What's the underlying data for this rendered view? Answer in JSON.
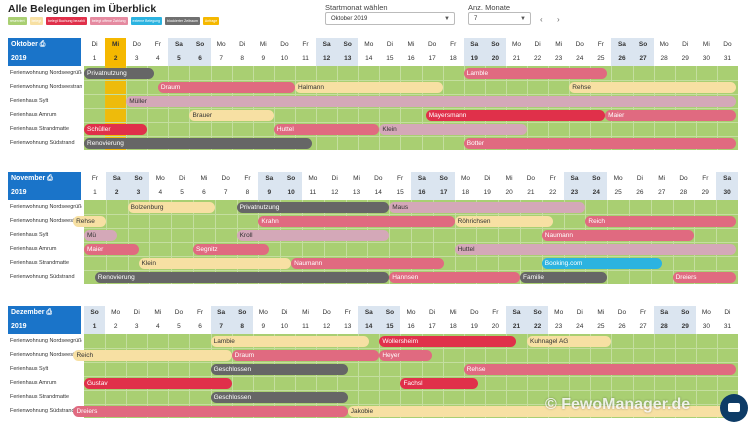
{
  "title": "Alle Belegungen im Überblick",
  "legend": [
    {
      "label": "reserviert",
      "color": "#a9cf72"
    },
    {
      "label": "belegt",
      "color": "#f7e0a3"
    },
    {
      "label": "belegt Buchung bezahlt",
      "color": "#e0304a"
    },
    {
      "label": "belegt offene Zahlung",
      "color": "#e58aa0"
    },
    {
      "label": "externe Belegung",
      "color": "#2bb3e0"
    },
    {
      "label": "blockierter Zeitraum",
      "color": "#707070"
    },
    {
      "label": "Anfrage",
      "color": "#f5b800"
    }
  ],
  "controls": {
    "start_label": "Startmonat wählen",
    "start_value": "Oktober 2019",
    "count_label": "Anz. Monate",
    "count_value": "7",
    "prev": "‹",
    "next": "›"
  },
  "colors": {
    "accent": "#1a74c9",
    "grid": "#a9cf72",
    "weekend": "#dbe5f0",
    "today": "#f5b800"
  },
  "months": [
    {
      "name": "Oktober",
      "year": "2019",
      "icon": "print-icon",
      "dows": [
        "Di",
        "Mi",
        "Do",
        "Fr",
        "Sa",
        "So",
        "Mo",
        "Di",
        "Mi",
        "Do",
        "Fr",
        "Sa",
        "So",
        "Mo",
        "Di",
        "Mi",
        "Do",
        "Fr",
        "Sa",
        "So",
        "Mo",
        "Di",
        "Mi",
        "Do",
        "Fr",
        "Sa",
        "So",
        "Mo",
        "Di",
        "Mi",
        "Do"
      ],
      "today": 2,
      "units": [
        "Ferienwohnung Nordseegrüße",
        "Ferienwohnung Nordseestrand",
        "Ferienhaus Sylt",
        "Ferienhaus Amrum",
        "Ferienhaus Strandmatte",
        "Ferienwohnung Südstrand"
      ],
      "bookings": [
        {
          "row": 0,
          "s": 1,
          "e": 4.3,
          "label": "Privatnutzung",
          "color": "#666666",
          "dark": false
        },
        {
          "row": 0,
          "s": 19,
          "e": 25.8,
          "label": "Lamble",
          "color": "#e06a80",
          "dark": false
        },
        {
          "row": 1,
          "s": 4.5,
          "e": 11,
          "label": "Draum",
          "color": "#e06a80",
          "dark": false
        },
        {
          "row": 1,
          "s": 11,
          "e": 18,
          "label": "Halmann",
          "color": "#f7e0a3",
          "dark": true
        },
        {
          "row": 1,
          "s": 24,
          "e": 31.9,
          "label": "Rehse",
          "color": "#f7e0a3",
          "dark": true
        },
        {
          "row": 2,
          "s": 3,
          "e": 31.9,
          "label": "Müller",
          "color": "#d4a8b8",
          "dark": true
        },
        {
          "row": 3,
          "s": 6,
          "e": 10,
          "label": "Brauer",
          "color": "#f7e0a3",
          "dark": true
        },
        {
          "row": 3,
          "s": 17.2,
          "e": 25.7,
          "label": "Mayersmann",
          "color": "#e0304a",
          "dark": false
        },
        {
          "row": 3,
          "s": 25.7,
          "e": 31.9,
          "label": "Maier",
          "color": "#e06a80",
          "dark": false
        },
        {
          "row": 4,
          "s": 1,
          "e": 4,
          "label": "Schüller",
          "color": "#e0304a",
          "dark": false
        },
        {
          "row": 4,
          "s": 10,
          "e": 15,
          "label": "Huttel",
          "color": "#e06a80",
          "dark": false
        },
        {
          "row": 4,
          "s": 15,
          "e": 22,
          "label": "Klein",
          "color": "#d4a8b8",
          "dark": true
        },
        {
          "row": 5,
          "s": 1,
          "e": 11.8,
          "label": "Renovierung",
          "color": "#666666",
          "dark": false
        },
        {
          "row": 5,
          "s": 19,
          "e": 31.9,
          "label": "Botter",
          "color": "#e06a80",
          "dark": false
        }
      ]
    },
    {
      "name": "November",
      "year": "2019",
      "icon": "print-icon",
      "dows": [
        "Fr",
        "Sa",
        "So",
        "Mo",
        "Di",
        "Mi",
        "Do",
        "Fr",
        "Sa",
        "So",
        "Mo",
        "Di",
        "Mi",
        "Do",
        "Fr",
        "Sa",
        "So",
        "Mo",
        "Di",
        "Mi",
        "Do",
        "Fr",
        "Sa",
        "So",
        "Mo",
        "Di",
        "Mi",
        "Do",
        "Fr",
        "Sa"
      ],
      "today": 0,
      "units": [
        "Ferienwohnung Nordseegrüße",
        "Ferienwohnung Nordseestrand",
        "Ferienhaus Sylt",
        "Ferienhaus Amrum",
        "Ferienhaus Strandmatte",
        "Ferienwohnung Südstrand"
      ],
      "bookings": [
        {
          "row": 0,
          "s": 3,
          "e": 7,
          "label": "Bolzenburg",
          "color": "#f7e0a3",
          "dark": true
        },
        {
          "row": 0,
          "s": 8,
          "e": 15,
          "label": "Privatnutzung",
          "color": "#666666",
          "dark": false
        },
        {
          "row": 0,
          "s": 15,
          "e": 24,
          "label": "Maus",
          "color": "#d4a8b8",
          "dark": true
        },
        {
          "row": 1,
          "s": 0.5,
          "e": 2,
          "label": "Rehse",
          "color": "#f7e0a3",
          "dark": true
        },
        {
          "row": 1,
          "s": 9,
          "e": 18,
          "label": "Krahn",
          "color": "#e06a80",
          "dark": false
        },
        {
          "row": 1,
          "s": 18,
          "e": 22.5,
          "label": "Röhrichsen",
          "color": "#f7e0a3",
          "dark": true
        },
        {
          "row": 1,
          "s": 24,
          "e": 30.9,
          "label": "Reich",
          "color": "#e06a80",
          "dark": false
        },
        {
          "row": 2,
          "s": 1,
          "e": 2.5,
          "label": "Mü",
          "color": "#d4a8b8",
          "dark": true
        },
        {
          "row": 2,
          "s": 8,
          "e": 15,
          "label": "Kroll",
          "color": "#d4a8b8",
          "dark": true
        },
        {
          "row": 2,
          "s": 22,
          "e": 29,
          "label": "Naumann",
          "color": "#e06a80",
          "dark": false
        },
        {
          "row": 3,
          "s": 1,
          "e": 3.5,
          "label": "Maier",
          "color": "#e06a80",
          "dark": false
        },
        {
          "row": 3,
          "s": 6,
          "e": 9.5,
          "label": "Segnitz",
          "color": "#e06a80",
          "dark": false
        },
        {
          "row": 3,
          "s": 18,
          "e": 30.9,
          "label": "Huttel",
          "color": "#d4a8b8",
          "dark": true
        },
        {
          "row": 4,
          "s": 3.5,
          "e": 10.5,
          "label": "Klein",
          "color": "#f7e0a3",
          "dark": true
        },
        {
          "row": 4,
          "s": 10.5,
          "e": 17.5,
          "label": "Naumann",
          "color": "#e06a80",
          "dark": false
        },
        {
          "row": 4,
          "s": 22,
          "e": 27.5,
          "label": "Booking.com",
          "color": "#2bb3e0",
          "dark": false
        },
        {
          "row": 5,
          "s": 1.5,
          "e": 15,
          "label": "Renovierung",
          "color": "#666666",
          "dark": false
        },
        {
          "row": 5,
          "s": 15,
          "e": 21,
          "label": "Hannsen",
          "color": "#e06a80",
          "dark": false
        },
        {
          "row": 5,
          "s": 21,
          "e": 25,
          "label": "Familie",
          "color": "#666666",
          "dark": false
        },
        {
          "row": 5,
          "s": 28,
          "e": 30.9,
          "label": "Dreiers",
          "color": "#e06a80",
          "dark": false
        }
      ]
    },
    {
      "name": "Dezember",
      "year": "2019",
      "icon": "print-icon",
      "dows": [
        "So",
        "Mo",
        "Di",
        "Mi",
        "Do",
        "Fr",
        "Sa",
        "So",
        "Mo",
        "Di",
        "Mi",
        "Do",
        "Fr",
        "Sa",
        "So",
        "Mo",
        "Di",
        "Mi",
        "Do",
        "Fr",
        "Sa",
        "So",
        "Mo",
        "Di",
        "Mi",
        "Do",
        "Fr",
        "Sa",
        "So",
        "Mo",
        "Di"
      ],
      "today": 0,
      "units": [
        "Ferienwohnung Nordseegrüße",
        "Ferienwohnung Nordseestrand",
        "Ferienhaus Sylt",
        "Ferienhaus Amrum",
        "Ferienhaus Strandmatte",
        "Ferienwohnung Südstrand"
      ],
      "bookings": [
        {
          "row": 0,
          "s": 7,
          "e": 14.5,
          "label": "Lambie",
          "color": "#f7e0a3",
          "dark": true
        },
        {
          "row": 0,
          "s": 15,
          "e": 21.5,
          "label": "Wollersheim",
          "color": "#e0304a",
          "dark": false
        },
        {
          "row": 0,
          "s": 22,
          "e": 26,
          "label": "Kuhnagel AG",
          "color": "#f7e0a3",
          "dark": true
        },
        {
          "row": 1,
          "s": 0.5,
          "e": 8,
          "label": "Reich",
          "color": "#f7e0a3",
          "dark": true
        },
        {
          "row": 1,
          "s": 8,
          "e": 15,
          "label": "Draum",
          "color": "#e06a80",
          "dark": false
        },
        {
          "row": 1,
          "s": 15,
          "e": 17.5,
          "label": "Heyer",
          "color": "#e06a80",
          "dark": false
        },
        {
          "row": 2,
          "s": 7,
          "e": 13.5,
          "label": "Geschlossen",
          "color": "#666666",
          "dark": false
        },
        {
          "row": 2,
          "s": 19,
          "e": 31.9,
          "label": "Rehse",
          "color": "#e06a80",
          "dark": false
        },
        {
          "row": 3,
          "s": 1,
          "e": 8,
          "label": "Gustav",
          "color": "#e0304a",
          "dark": false
        },
        {
          "row": 3,
          "s": 16,
          "e": 19.7,
          "label": "Fachsl",
          "color": "#e0304a",
          "dark": false
        },
        {
          "row": 4,
          "s": 7,
          "e": 13.5,
          "label": "Geschlossen",
          "color": "#666666",
          "dark": false
        },
        {
          "row": 5,
          "s": 0.5,
          "e": 13.5,
          "label": "Dreiers",
          "color": "#e06a80",
          "dark": false
        },
        {
          "row": 5,
          "s": 13.5,
          "e": 31.9,
          "label": "Jakobie",
          "color": "#f7e0a3",
          "dark": true
        }
      ]
    }
  ],
  "watermark": "© FewoManager.de",
  "chat_icon": "chat-bubble-icon"
}
